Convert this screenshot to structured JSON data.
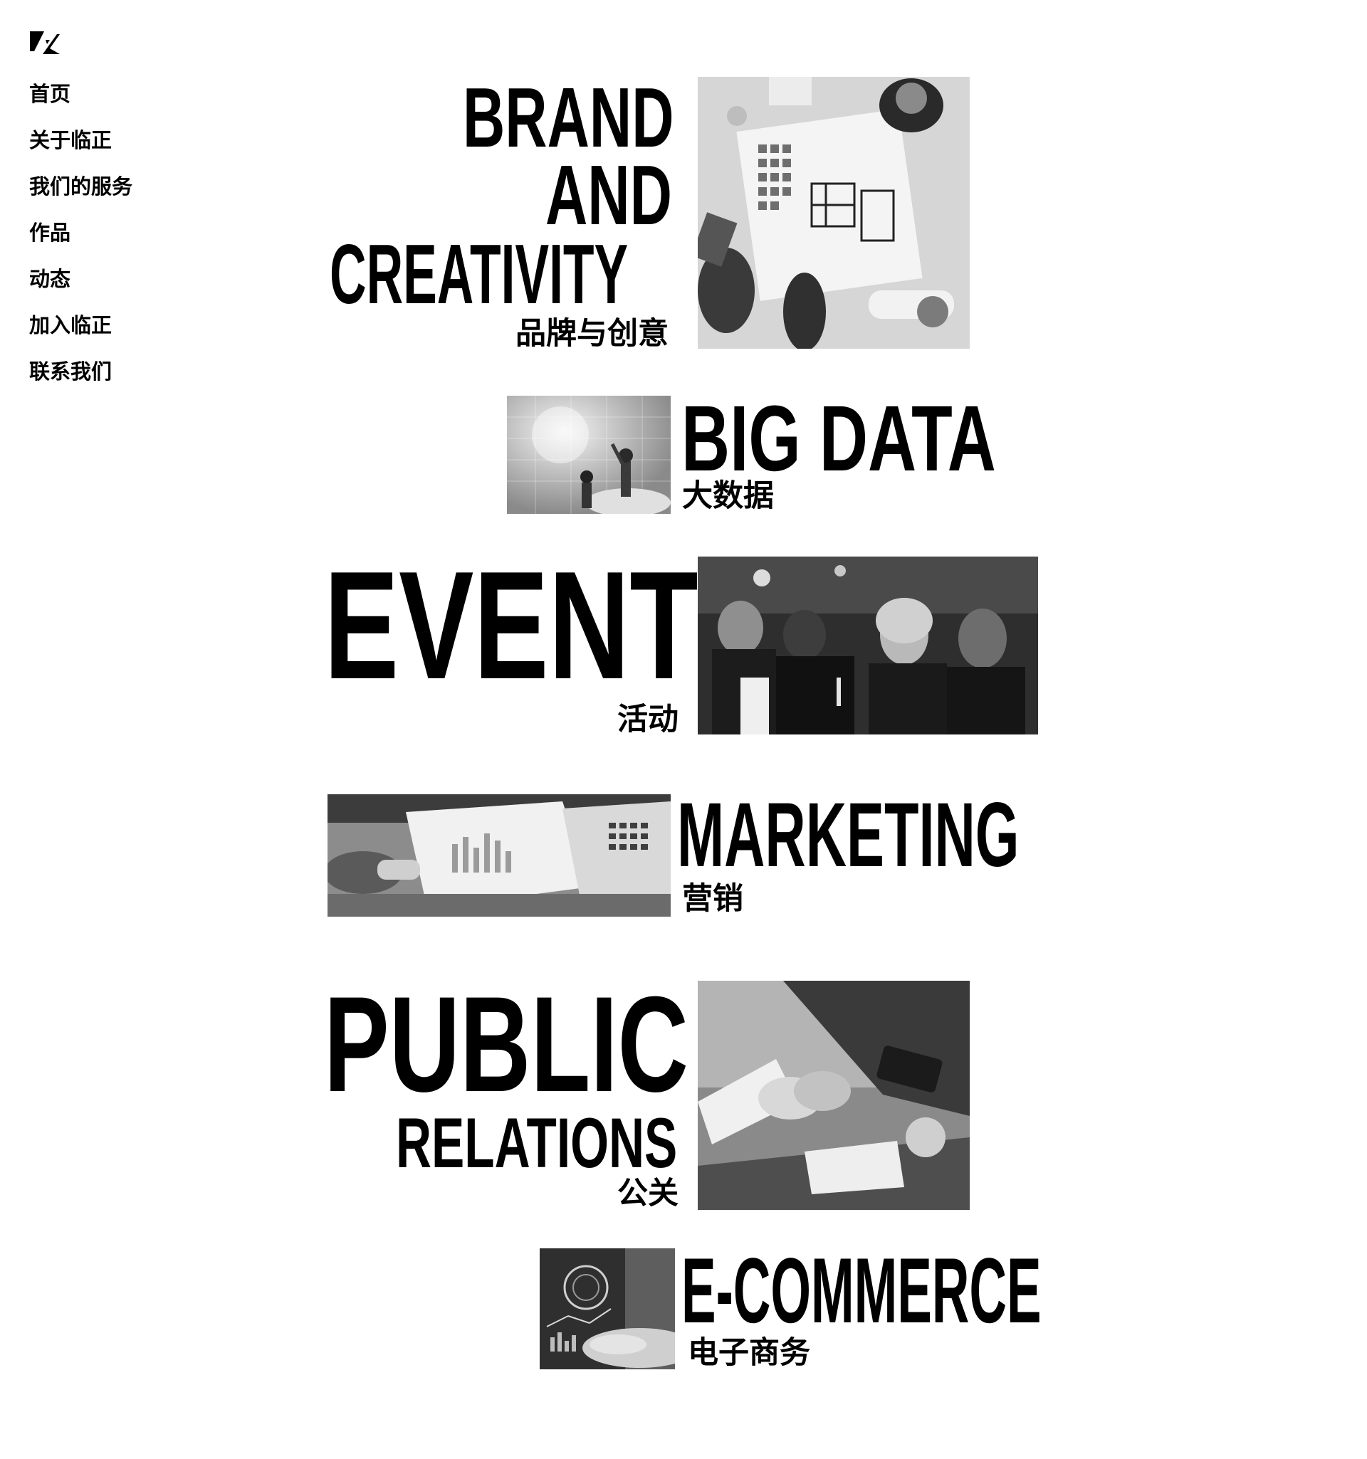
{
  "brand": {
    "logo_icon": "lz-logo-icon"
  },
  "nav": {
    "items": [
      {
        "label": "首页"
      },
      {
        "label": "关于临正"
      },
      {
        "label": "我们的服务"
      },
      {
        "label": "作品"
      },
      {
        "label": "动态"
      },
      {
        "label": "加入临正"
      },
      {
        "label": "联系我们"
      }
    ]
  },
  "services": {
    "brand": {
      "title_lines": [
        "BRAND",
        "AND",
        "CREATIVITY"
      ],
      "subtitle": "品牌与创意",
      "image": "team-meeting-photo"
    },
    "bigdata": {
      "title": "BIG DATA",
      "subtitle": "大数据",
      "image": "data-cloud-photo"
    },
    "event": {
      "title": "EVENT",
      "subtitle": "活动",
      "image": "party-people-photo"
    },
    "marketing": {
      "title": "MARKETING",
      "subtitle": "营销",
      "image": "charts-laptop-photo"
    },
    "pr": {
      "title_lines": [
        "PUBLIC",
        "RELATIONS"
      ],
      "subtitle": "公关",
      "image": "handshake-photo"
    },
    "ecommerce": {
      "title": "E-COMMERCE",
      "subtitle": "电子商务",
      "image": "tablet-data-photo"
    }
  },
  "colors": {
    "background": "#ffffff",
    "text": "#000000"
  }
}
